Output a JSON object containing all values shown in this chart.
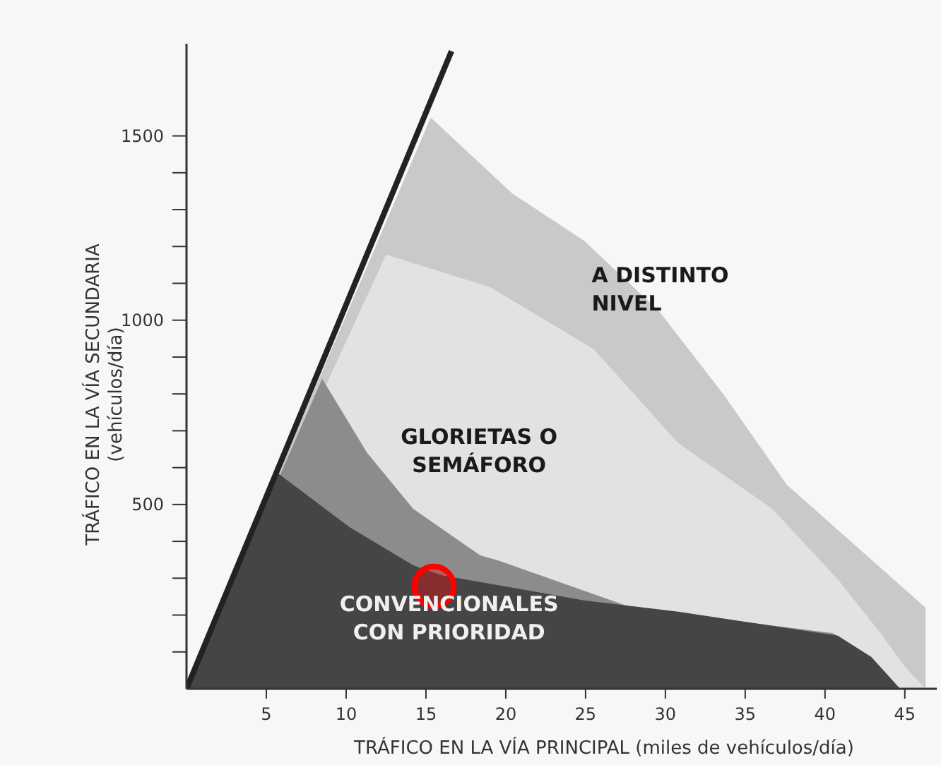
{
  "chart_data": {
    "type": "area",
    "xlabel": "TRÁFICO EN LA VÍA PRINCIPAL (miles de vehículos/día)",
    "ylabel": "TRÁFICO EN LA VÍA SECUNDARIA\n(vehículos/día)",
    "xlim": [
      0,
      47
    ],
    "ylim": [
      0,
      1750
    ],
    "xticks": [
      5,
      10,
      15,
      20,
      25,
      30,
      35,
      40,
      45
    ],
    "yticks": [
      {
        "value": 100,
        "label": null
      },
      {
        "value": 200,
        "label": null
      },
      {
        "value": 300,
        "label": null
      },
      {
        "value": 400,
        "label": null
      },
      500,
      {
        "value": 600,
        "label": null
      },
      {
        "value": 700,
        "label": null
      },
      {
        "value": 800,
        "label": null
      },
      {
        "value": 900,
        "label": null
      },
      1000,
      {
        "value": 1100,
        "label": null
      },
      {
        "value": 1200,
        "label": null
      },
      {
        "value": 1300,
        "label": null
      },
      {
        "value": 1400,
        "label": null
      },
      1500
    ],
    "grid": false,
    "series": [
      {
        "name": "A DISTINTO\nNIVEL",
        "color": "#c9c9c9",
        "x": [
          0,
          15.3,
          20.4,
          24.9,
          29.6,
          33.7,
          37.6,
          42.6,
          46.3,
          46.3
        ],
        "values": [
          0,
          1550,
          1344,
          1216,
          1025,
          795,
          554,
          362,
          220,
          0
        ]
      },
      {
        "name": "GLORIETAS O\nSEMÁFORO",
        "color": "#e2e2e2",
        "x": [
          0,
          12.5,
          19,
          25.5,
          30.8,
          36.7,
          40.8,
          43.5,
          45,
          46.3
        ],
        "values": [
          0,
          1178,
          1090,
          922,
          667,
          488,
          297,
          150,
          60,
          0
        ]
      },
      {
        "color": "#8c8c8c",
        "x": [
          0,
          8.5,
          11.3,
          14.2,
          18.4,
          19.6,
          27.9,
          40.5,
          42.9,
          44.7
        ],
        "values": [
          0,
          841,
          641,
          488,
          362,
          347,
          220,
          151,
          86,
          0
        ]
      },
      {
        "name": "CONVENCIONALES\nCON PRIORIDAD",
        "color": "#454545",
        "x": [
          0,
          5.75,
          10.2,
          14.2,
          16,
          24.9,
          30.8,
          40.8,
          42.9,
          44.7
        ],
        "values": [
          0,
          584,
          439,
          335,
          308,
          240,
          209,
          144,
          86,
          0
        ]
      },
      {
        "type": "line",
        "color": "#222222",
        "x": [
          0,
          16.6
        ],
        "values": [
          0,
          1730
        ]
      },
      {
        "type": "scatter",
        "color": "#ff0000",
        "marker": "circle",
        "x": [
          15.5
        ],
        "values": [
          278
        ]
      }
    ]
  }
}
